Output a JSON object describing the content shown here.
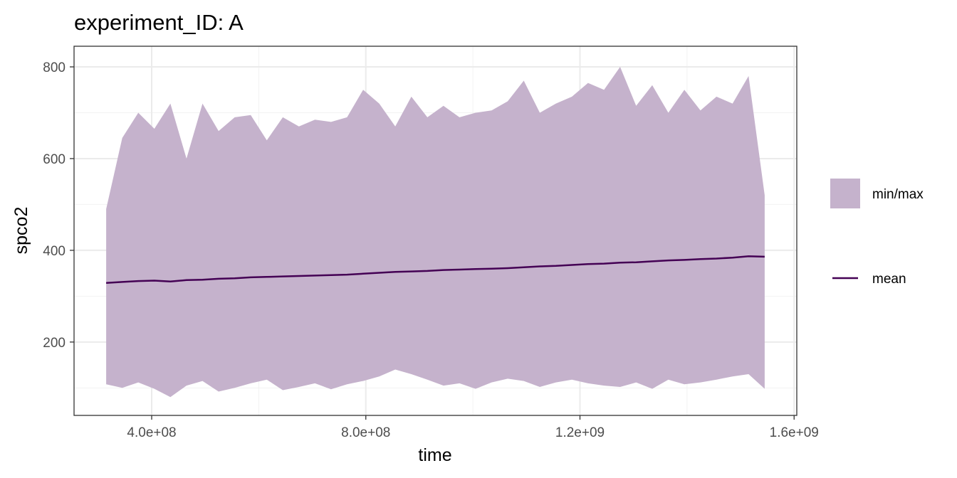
{
  "chart_data": {
    "type": "area",
    "title": "experiment_ID: A",
    "xlabel": "time",
    "ylabel": "spco2",
    "xlim": [
      255000000,
      1605000000
    ],
    "ylim": [
      40,
      845
    ],
    "x_ticks": [
      400000000,
      800000000,
      1200000000,
      1600000000
    ],
    "x_tick_labels": [
      "4.0e+08",
      "8.0e+08",
      "1.2e+09",
      "1.6e+09"
    ],
    "y_ticks": [
      200,
      400,
      600,
      800
    ],
    "y_tick_labels": [
      "200",
      "400",
      "600",
      "800"
    ],
    "grid": true,
    "legend_position": "right",
    "colors": {
      "band": "#c5b2cc",
      "mean": "#440154",
      "panel_border": "#333333",
      "grid": "#ebebeb"
    },
    "x": [
      315000000,
      345000000,
      375000000,
      405000000,
      435000000,
      465000000,
      495000000,
      525000000,
      555000000,
      585000000,
      615000000,
      645000000,
      675000000,
      705000000,
      735000000,
      765000000,
      795000000,
      825000000,
      855000000,
      885000000,
      915000000,
      945000000,
      975000000,
      1005000000,
      1035000000,
      1065000000,
      1095000000,
      1125000000,
      1155000000,
      1185000000,
      1215000000,
      1245000000,
      1275000000,
      1305000000,
      1335000000,
      1365000000,
      1395000000,
      1425000000,
      1455000000,
      1485000000,
      1515000000,
      1545000000
    ],
    "series": [
      {
        "name": "min/max",
        "kind": "ribbon",
        "ymin": [
          108,
          100,
          112,
          98,
          80,
          105,
          115,
          92,
          100,
          110,
          118,
          95,
          102,
          110,
          97,
          108,
          115,
          125,
          140,
          130,
          118,
          105,
          110,
          98,
          112,
          120,
          115,
          102,
          112,
          118,
          110,
          105,
          102,
          112,
          98,
          118,
          108,
          112,
          118,
          125,
          130,
          98
        ],
        "ymax": [
          490,
          645,
          700,
          665,
          720,
          600,
          720,
          660,
          690,
          695,
          640,
          690,
          670,
          685,
          680,
          690,
          750,
          720,
          670,
          735,
          690,
          715,
          690,
          700,
          705,
          725,
          770,
          700,
          720,
          735,
          765,
          750,
          800,
          715,
          760,
          700,
          750,
          705,
          735,
          720,
          780,
          520
        ]
      },
      {
        "name": "mean",
        "kind": "line",
        "y": [
          329,
          331,
          333,
          334,
          332,
          335,
          336,
          338,
          339,
          341,
          342,
          343,
          344,
          345,
          346,
          347,
          349,
          351,
          353,
          354,
          355,
          357,
          358,
          359,
          360,
          361,
          363,
          365,
          366,
          368,
          370,
          371,
          373,
          374,
          376,
          378,
          379,
          381,
          382,
          384,
          387,
          386
        ]
      }
    ],
    "legend": [
      {
        "label": "min/max",
        "kind": "fill"
      },
      {
        "label": "mean",
        "kind": "line"
      }
    ]
  }
}
